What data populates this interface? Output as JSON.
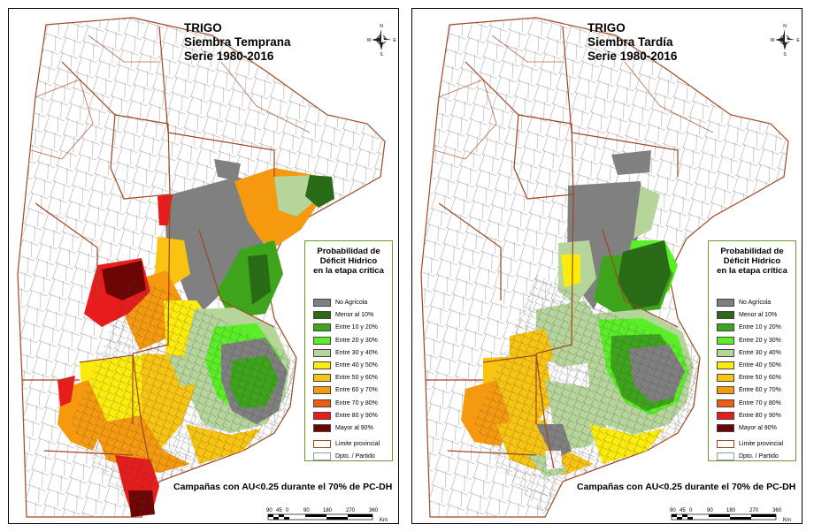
{
  "panels": [
    {
      "title": [
        "TRIGO",
        "Siembra Temprana",
        "Serie 1980-2016"
      ],
      "caption": "Campañas con AU<0.25 durante el 70% de PC-DH"
    },
    {
      "title": [
        "TRIGO",
        "Siembra Tardía",
        "Serie 1980-2016"
      ],
      "caption": "Campañas con AU<0.25 durante el 70% de PC-DH"
    }
  ],
  "legend": {
    "title": [
      "Probabilidad de",
      "Déficit Hídrico",
      "en la etapa crítica"
    ],
    "items": [
      {
        "label": "No Agrícola",
        "color": "#808080"
      },
      {
        "label": "Menor al 10%",
        "color": "#2a6b17"
      },
      {
        "label": "Entre 10 y 20%",
        "color": "#3ea41c"
      },
      {
        "label": "Entre 20 y 30%",
        "color": "#5aee26"
      },
      {
        "label": "Entre 30 y 40%",
        "color": "#b5d59a"
      },
      {
        "label": "Entre 40 y 50%",
        "color": "#fbec0c"
      },
      {
        "label": "Entre 50 y 60%",
        "color": "#f8c412"
      },
      {
        "label": "Entre 60 y 70%",
        "color": "#f59a0f"
      },
      {
        "label": "Entre 70 y 80%",
        "color": "#ef5c12"
      },
      {
        "label": "Entre 80 y 90%",
        "color": "#e81c1c"
      },
      {
        "label": "Mayor al 90%",
        "color": "#6e0505"
      }
    ],
    "boundary_items": [
      {
        "label": "Limite provincial",
        "color": "#a0461e"
      },
      {
        "label": "Dpto. / Partido",
        "color": "#9a9a9a"
      }
    ]
  },
  "compass": {
    "n": "N",
    "s": "S",
    "e": "E",
    "w": "W"
  },
  "scale": {
    "ticks": [
      "90",
      "45",
      "0",
      "90",
      "180",
      "270",
      "360"
    ],
    "unit": "Km"
  }
}
